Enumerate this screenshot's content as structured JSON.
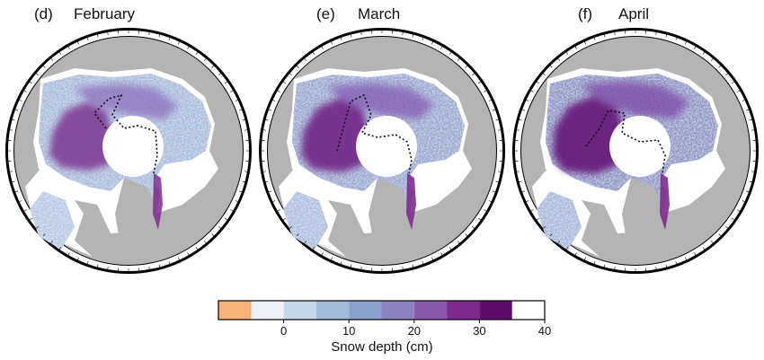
{
  "panels": [
    {
      "id": "d",
      "letter": "(d)",
      "month": "February"
    },
    {
      "id": "e",
      "letter": "(e)",
      "month": "March"
    },
    {
      "id": "f",
      "letter": "(f)",
      "month": "April"
    }
  ],
  "colorbar": {
    "title": "Snow depth  (cm)",
    "ticks": [
      "0",
      "10",
      "20",
      "30",
      "40"
    ],
    "range": [
      -10,
      40
    ],
    "bin_width": 5,
    "colors": [
      "#f9b277",
      "#eef2f8",
      "#c9d7ea",
      "#a6bad9",
      "#8aa1cd",
      "#8c82c0",
      "#8a59ab",
      "#7d2b8e",
      "#5e0d6c"
    ]
  },
  "map_colors": {
    "land": "#b4b4b4",
    "ocean": "#ffffff",
    "border": "#000000"
  }
}
